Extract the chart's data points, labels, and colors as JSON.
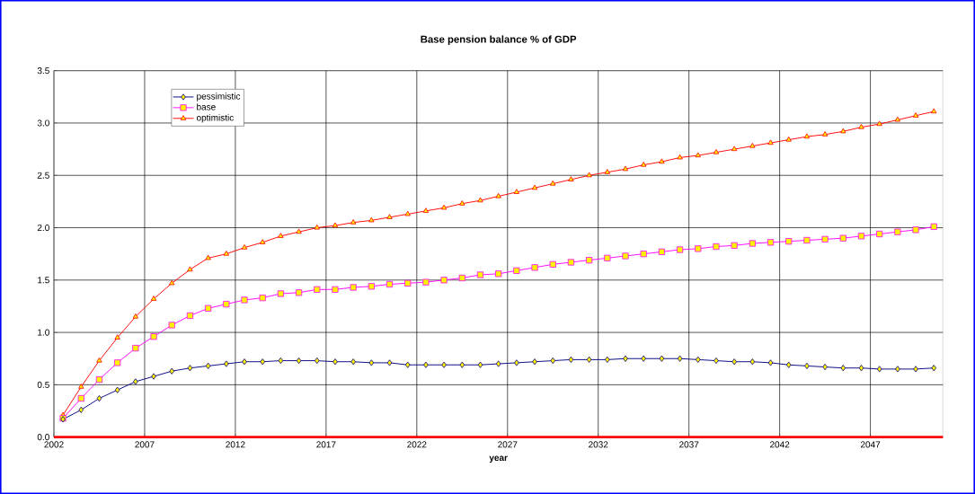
{
  "chart_data": {
    "type": "line",
    "title": "Base pension balance % of GDP",
    "xlabel": "year",
    "x": [
      2002,
      2003,
      2004,
      2005,
      2006,
      2007,
      2008,
      2009,
      2010,
      2011,
      2012,
      2013,
      2014,
      2015,
      2016,
      2017,
      2018,
      2019,
      2020,
      2021,
      2022,
      2023,
      2024,
      2025,
      2026,
      2027,
      2028,
      2029,
      2030,
      2031,
      2032,
      2033,
      2034,
      2035,
      2036,
      2037,
      2038,
      2039,
      2040,
      2041,
      2042,
      2043,
      2044,
      2045,
      2046,
      2047,
      2048,
      2049,
      2050
    ],
    "xlim": [
      2001.5,
      2050.5
    ],
    "xticks": [
      {
        "value": 2001.5,
        "label": "2002"
      },
      {
        "value": 2006.5,
        "label": "2007"
      },
      {
        "value": 2011.5,
        "label": "2012"
      },
      {
        "value": 2016.5,
        "label": "2017"
      },
      {
        "value": 2021.5,
        "label": "2022"
      },
      {
        "value": 2026.5,
        "label": "2027"
      },
      {
        "value": 2031.5,
        "label": "2032"
      },
      {
        "value": 2036.5,
        "label": "2037"
      },
      {
        "value": 2041.5,
        "label": "2042"
      },
      {
        "value": 2046.5,
        "label": "2047"
      }
    ],
    "ylim": [
      0,
      3.5
    ],
    "yticks": [
      {
        "value": 0,
        "label": "0.0"
      },
      {
        "value": 0.5,
        "label": "0.5"
      },
      {
        "value": 1,
        "label": "1.0"
      },
      {
        "value": 1.5,
        "label": "1.5"
      },
      {
        "value": 2,
        "label": "2.0"
      },
      {
        "value": 2.5,
        "label": "2.5"
      },
      {
        "value": 3,
        "label": "3.0"
      },
      {
        "value": 3.5,
        "label": "3.5"
      }
    ],
    "grid": true,
    "legend": "top left",
    "line_style": "solid",
    "series": [
      {
        "name": "pessimistic",
        "color": "#000080",
        "marker": "diamond",
        "values": [
          0.17,
          0.26,
          0.37,
          0.45,
          0.53,
          0.58,
          0.63,
          0.66,
          0.68,
          0.7,
          0.72,
          0.72,
          0.73,
          0.73,
          0.73,
          0.72,
          0.72,
          0.71,
          0.71,
          0.69,
          0.69,
          0.69,
          0.69,
          0.69,
          0.7,
          0.71,
          0.72,
          0.73,
          0.74,
          0.74,
          0.74,
          0.75,
          0.75,
          0.75,
          0.75,
          0.74,
          0.73,
          0.72,
          0.72,
          0.71,
          0.69,
          0.68,
          0.67,
          0.66,
          0.66,
          0.65,
          0.65,
          0.65,
          0.66
        ]
      },
      {
        "name": "base",
        "color": "#ff00ff",
        "marker": "square",
        "values": [
          0.18,
          0.37,
          0.55,
          0.71,
          0.85,
          0.96,
          1.07,
          1.16,
          1.23,
          1.27,
          1.31,
          1.33,
          1.37,
          1.38,
          1.41,
          1.41,
          1.43,
          1.44,
          1.46,
          1.47,
          1.48,
          1.5,
          1.52,
          1.55,
          1.56,
          1.59,
          1.62,
          1.65,
          1.67,
          1.69,
          1.71,
          1.73,
          1.75,
          1.77,
          1.79,
          1.8,
          1.82,
          1.83,
          1.85,
          1.86,
          1.87,
          1.88,
          1.89,
          1.9,
          1.92,
          1.94,
          1.96,
          1.98,
          2.01
        ]
      },
      {
        "name": "optimistic",
        "color": "#ff0000",
        "marker": "triangle",
        "values": [
          0.21,
          0.48,
          0.73,
          0.95,
          1.15,
          1.32,
          1.47,
          1.6,
          1.71,
          1.75,
          1.81,
          1.86,
          1.92,
          1.96,
          2.0,
          2.02,
          2.05,
          2.07,
          2.1,
          2.13,
          2.16,
          2.19,
          2.23,
          2.26,
          2.3,
          2.34,
          2.38,
          2.42,
          2.46,
          2.5,
          2.53,
          2.56,
          2.6,
          2.63,
          2.67,
          2.69,
          2.72,
          2.75,
          2.78,
          2.81,
          2.84,
          2.87,
          2.89,
          2.92,
          2.96,
          2.99,
          3.03,
          3.07,
          3.11
        ]
      }
    ]
  }
}
